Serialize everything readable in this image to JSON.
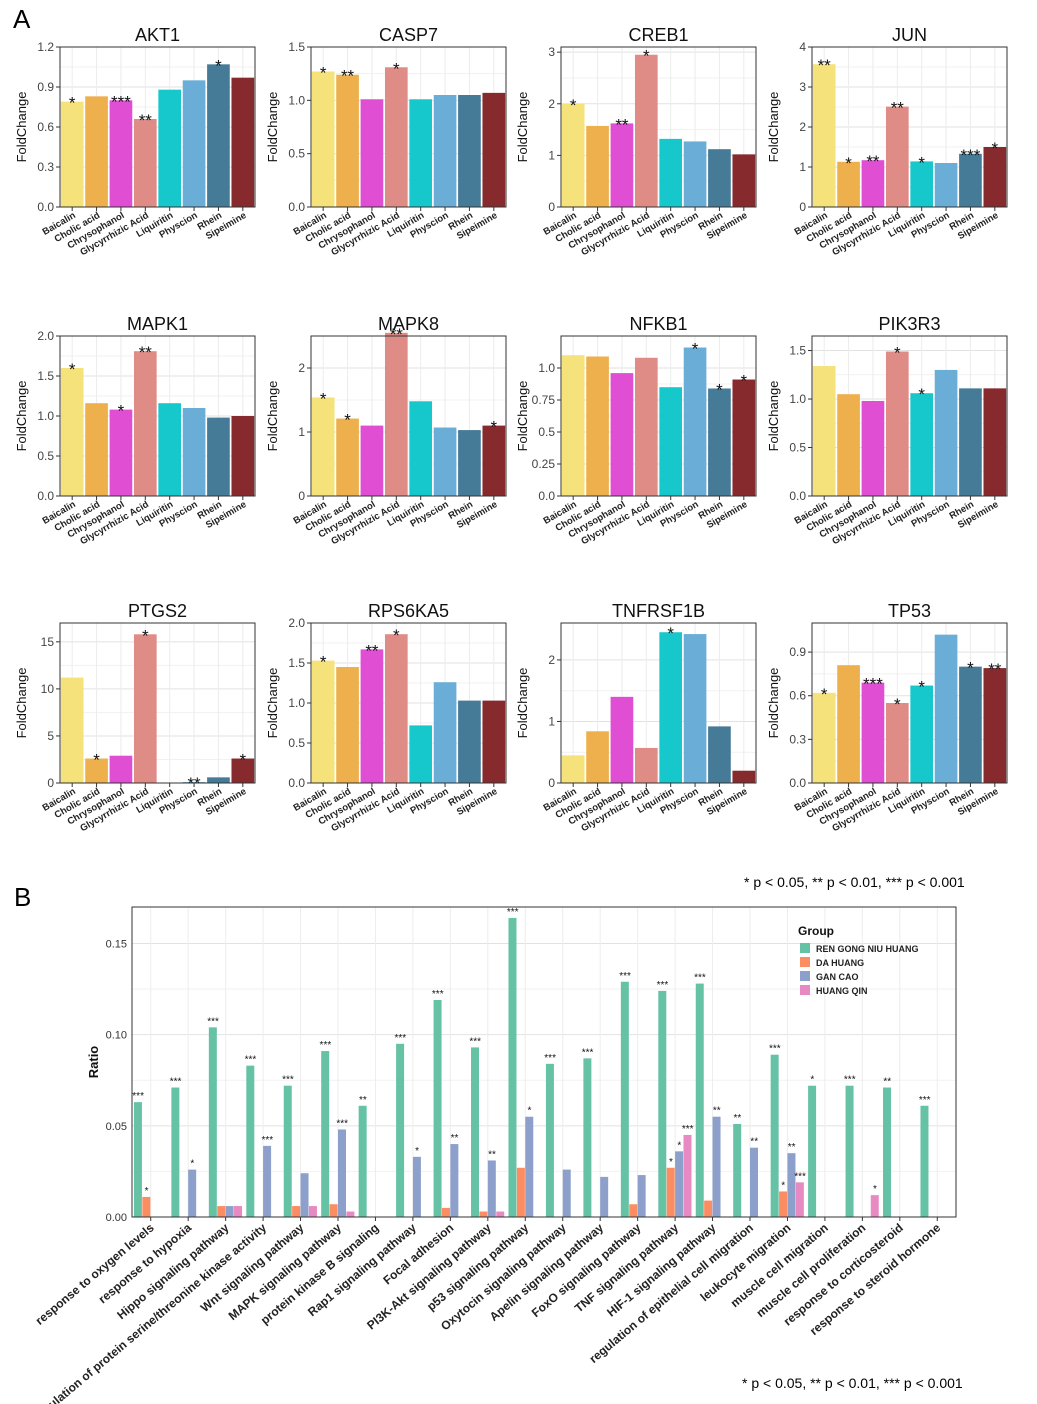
{
  "panels": {
    "a_label": "A",
    "b_label": "B"
  },
  "footnotes": {
    "a": "* p < 0.05, ** p < 0.01, *** p < 0.001",
    "b": "* p < 0.05, ** p < 0.01, *** p < 0.001"
  },
  "colors": {
    "compounds": [
      "#F5E27A",
      "#EDB04C",
      "#E04ED4",
      "#E08C86",
      "#16C8CC",
      "#6AAED8",
      "#457B97",
      "#862A2E"
    ],
    "groups": [
      "#66C2A5",
      "#FC8D62",
      "#8DA0CB",
      "#E78AC3"
    ]
  },
  "chart_data": [
    {
      "type": "bar",
      "title": "AKT1",
      "ylabel": "FoldChange",
      "categories": [
        "Baicalin",
        "Cholic acid",
        "Chrysophanol",
        "Glycyrrhizic Acid",
        "Liquiritin",
        "Physcion",
        "Rhein",
        "Sipeimine"
      ],
      "values": [
        0.79,
        0.83,
        0.8,
        0.66,
        0.88,
        0.95,
        1.07,
        0.97
      ],
      "significance": [
        "*",
        "",
        "***",
        "**",
        "",
        "",
        "*",
        ""
      ],
      "ylim": [
        0,
        1.2
      ],
      "yticks": [
        0.0,
        0.3,
        0.6,
        0.9,
        1.2
      ],
      "ytick_labels": [
        "0.0",
        "0.3",
        "0.6",
        "0.9",
        "1.2"
      ]
    },
    {
      "type": "bar",
      "title": "CASP7",
      "ylabel": "FoldChange",
      "categories": [
        "Baicalin",
        "Cholic acid",
        "Chrysophanol",
        "Glycyrrhizic Acid",
        "Liquiritin",
        "Physcion",
        "Rhein",
        "Sipeimine"
      ],
      "values": [
        1.27,
        1.24,
        1.01,
        1.31,
        1.01,
        1.05,
        1.05,
        1.07
      ],
      "significance": [
        "*",
        "**",
        "",
        "*",
        "",
        "",
        "",
        ""
      ],
      "ylim": [
        0,
        1.5
      ],
      "yticks": [
        0.0,
        0.5,
        1.0,
        1.5
      ],
      "ytick_labels": [
        "0.0",
        "0.5",
        "1.0",
        "1.5"
      ]
    },
    {
      "type": "bar",
      "title": "CREB1",
      "ylabel": "FoldChange",
      "categories": [
        "Baicalin",
        "Cholic acid",
        "Chrysophanol",
        "Glycyrrhizic Acid",
        "Liquiritin",
        "Physcion",
        "Rhein",
        "Sipeimine"
      ],
      "values": [
        2.0,
        1.57,
        1.62,
        2.95,
        1.32,
        1.27,
        1.12,
        1.02
      ],
      "significance": [
        "*",
        "",
        "**",
        "*",
        "",
        "",
        "",
        ""
      ],
      "ylim": [
        0,
        3.1
      ],
      "yticks": [
        0,
        1,
        2,
        3
      ],
      "ytick_labels": [
        "0",
        "1",
        "2",
        "3"
      ]
    },
    {
      "type": "bar",
      "title": "JUN",
      "ylabel": "FoldChange",
      "categories": [
        "Baicalin",
        "Cholic acid",
        "Chrysophanol",
        "Glycyrrhizic Acid",
        "Liquiritin",
        "Physcion",
        "Rhein",
        "Sipeimine"
      ],
      "values": [
        3.57,
        1.13,
        1.17,
        2.51,
        1.14,
        1.1,
        1.33,
        1.5
      ],
      "significance": [
        "**",
        "*",
        "**",
        "**",
        "*",
        "",
        "***",
        "*"
      ],
      "ylim": [
        0,
        4.0
      ],
      "yticks": [
        0,
        1,
        2,
        3,
        4
      ],
      "ytick_labels": [
        "0",
        "1",
        "2",
        "3",
        "4"
      ]
    },
    {
      "type": "bar",
      "title": "MAPK1",
      "ylabel": "FoldChange",
      "categories": [
        "Baicalin",
        "Cholic acid",
        "Chrysophanol",
        "Glycyrrhizic Acid",
        "Liquiritin",
        "Physcion",
        "Rhein",
        "Sipeimine"
      ],
      "values": [
        1.6,
        1.16,
        1.08,
        1.81,
        1.16,
        1.1,
        0.98,
        1.0
      ],
      "significance": [
        "*",
        "",
        "*",
        "**",
        "",
        "",
        "",
        ""
      ],
      "ylim": [
        0,
        2.0
      ],
      "yticks": [
        0.0,
        0.5,
        1.0,
        1.5,
        2.0
      ],
      "ytick_labels": [
        "0.0",
        "0.5",
        "1.0",
        "1.5",
        "2.0"
      ]
    },
    {
      "type": "bar",
      "title": "MAPK8",
      "ylabel": "FoldChange",
      "categories": [
        "Baicalin",
        "Cholic acid",
        "Chrysophanol",
        "Glycyrrhizic Acid",
        "Liquiritin",
        "Physcion",
        "Rhein",
        "Sipeimine"
      ],
      "values": [
        1.54,
        1.21,
        1.1,
        2.55,
        1.48,
        1.07,
        1.03,
        1.1
      ],
      "significance": [
        "*",
        "*",
        "",
        "**",
        "",
        "",
        "",
        "*"
      ],
      "ylim": [
        0,
        2.5
      ],
      "yticks": [
        0,
        1,
        2
      ],
      "ytick_labels": [
        "0",
        "1",
        "2"
      ]
    },
    {
      "type": "bar",
      "title": "NFKB1",
      "ylabel": "FoldChange",
      "categories": [
        "Baicalin",
        "Cholic acid",
        "Chrysophanol",
        "Glycyrrhizic Acid",
        "Liquiritin",
        "Physcion",
        "Rhein",
        "Sipeimine"
      ],
      "values": [
        1.1,
        1.09,
        0.96,
        1.08,
        0.85,
        1.16,
        0.84,
        0.91
      ],
      "significance": [
        "",
        "",
        "",
        "",
        "",
        "*",
        "*",
        "*"
      ],
      "ylim": [
        0,
        1.25
      ],
      "yticks": [
        0.0,
        0.25,
        0.5,
        0.75,
        1.0
      ],
      "ytick_labels": [
        "0.0",
        "0.25",
        "0.5",
        "0.75",
        "1.0"
      ]
    },
    {
      "type": "bar",
      "title": "PIK3R3",
      "ylabel": "FoldChange",
      "categories": [
        "Baicalin",
        "Cholic acid",
        "Chrysophanol",
        "Glycyrrhizic Acid",
        "Liquiritin",
        "Physcion",
        "Rhein",
        "Sipeimine"
      ],
      "values": [
        1.34,
        1.05,
        0.98,
        1.49,
        1.06,
        1.3,
        1.11,
        1.11
      ],
      "significance": [
        "",
        "",
        "",
        "*",
        "*",
        "",
        "",
        ""
      ],
      "ylim": [
        0,
        1.65
      ],
      "yticks": [
        0.0,
        0.5,
        1.0,
        1.5
      ],
      "ytick_labels": [
        "0.0",
        "0.5",
        "1.0",
        "1.5"
      ]
    },
    {
      "type": "bar",
      "title": "PTGS2",
      "ylabel": "FoldChange",
      "categories": [
        "Baicalin",
        "Cholic acid",
        "Chrysophanol",
        "Glycyrrhizic Acid",
        "Liquiritin",
        "Physcion",
        "Rhein",
        "Sipeimine"
      ],
      "values": [
        11.2,
        2.6,
        2.9,
        15.8,
        0,
        0.1,
        0.6,
        2.6
      ],
      "significance": [
        "",
        "*",
        "",
        "*",
        "",
        "**",
        "",
        "*"
      ],
      "ylim": [
        0,
        17
      ],
      "yticks": [
        0,
        5,
        10,
        15
      ],
      "ytick_labels": [
        "0",
        "5",
        "10",
        "15"
      ]
    },
    {
      "type": "bar",
      "title": "RPS6KA5",
      "ylabel": "FoldChange",
      "categories": [
        "Baicalin",
        "Cholic acid",
        "Chrysophanol",
        "Glycyrrhizic Acid",
        "Liquiritin",
        "Physcion",
        "Rhein",
        "Sipeimine"
      ],
      "values": [
        1.53,
        1.45,
        1.67,
        1.86,
        0.72,
        1.26,
        1.03,
        1.03
      ],
      "significance": [
        "*",
        "",
        "**",
        "*",
        "",
        "",
        "",
        ""
      ],
      "ylim": [
        0,
        2.0
      ],
      "yticks": [
        0.0,
        0.5,
        1.0,
        1.5,
        2.0
      ],
      "ytick_labels": [
        "0.0",
        "0.5",
        "1.0",
        "1.5",
        "2.0"
      ]
    },
    {
      "type": "bar",
      "title": "TNFRSF1B",
      "ylabel": "FoldChange",
      "categories": [
        "Baicalin",
        "Cholic acid",
        "Chrysophanol",
        "Glycyrrhizic Acid",
        "Liquiritin",
        "Physcion",
        "Rhein",
        "Sipeimine"
      ],
      "values": [
        0.45,
        0.84,
        1.4,
        0.57,
        2.45,
        2.42,
        0.92,
        0.2
      ],
      "significance": [
        "",
        "",
        "",
        "",
        "*",
        "",
        "",
        ""
      ],
      "ylim": [
        0,
        2.6
      ],
      "yticks": [
        0,
        1,
        2
      ],
      "ytick_labels": [
        "0",
        "1",
        "2"
      ]
    },
    {
      "type": "bar",
      "title": "TP53",
      "ylabel": "FoldChange",
      "categories": [
        "Baicalin",
        "Cholic acid",
        "Chrysophanol",
        "Glycyrrhizic Acid",
        "Liquiritin",
        "Physcion",
        "Rhein",
        "Sipeimine"
      ],
      "values": [
        0.62,
        0.81,
        0.69,
        0.55,
        0.67,
        1.02,
        0.8,
        0.79
      ],
      "significance": [
        "*",
        "",
        "***",
        "*",
        "*",
        "",
        "*",
        "**"
      ],
      "ylim": [
        0,
        1.1
      ],
      "yticks": [
        0.0,
        0.3,
        0.6,
        0.9
      ],
      "ytick_labels": [
        "0.0",
        "0.3",
        "0.6",
        "0.9"
      ]
    },
    {
      "type": "bar",
      "ylabel": "Ratio",
      "ylim": [
        0,
        0.17
      ],
      "yticks": [
        0.0,
        0.05,
        0.1,
        0.15
      ],
      "ytick_labels": [
        "0.00",
        "0.05",
        "0.10",
        "0.15"
      ],
      "legend": {
        "title": "Group",
        "position": "top-right"
      },
      "categories": [
        "response to oxygen levels",
        "response to hypoxia",
        "Hippo signaling pathway",
        "regulation of protein serine/threonine kinase activity",
        "Wnt signaling pathway",
        "MAPK signaling pathway",
        "protein kinase B signaling",
        "Rap1 signaling pathway",
        "Focal adhesion",
        "PI3K-Akt signaling pathway",
        "p53 signaling pathway",
        "Oxytocin signaling pathway",
        "Apelin signaling pathway",
        "FoxO signaling pathway",
        "TNF signaling pathway",
        "HIF-1 signaling pathway",
        "regulation of epithelial cell migration",
        "leukocyte migration",
        "muscle cell migration",
        "muscle cell proliferation",
        "response to corticosteroid",
        "response to steroid hormone"
      ],
      "series": [
        {
          "name": "REN GONG NIU HUANG",
          "values": [
            0.063,
            0.071,
            0.104,
            0.083,
            0.072,
            0.091,
            0.061,
            0.095,
            0.119,
            0.093,
            0.164,
            0.084,
            0.087,
            0.129,
            0.124,
            0.128,
            0.051,
            0.089,
            0.072,
            0.072,
            0.071,
            0.061
          ],
          "significance": [
            "***",
            "***",
            "***",
            "***",
            "***",
            "***",
            "**",
            "***",
            "***",
            "***",
            "***",
            "***",
            "***",
            "***",
            "***",
            "***",
            "**",
            "***",
            "*",
            "***",
            "**",
            "***"
          ]
        },
        {
          "name": "DA HUANG",
          "values": [
            0.011,
            0,
            0.006,
            0,
            0.006,
            0.007,
            0,
            0,
            0.005,
            0.003,
            0.027,
            0,
            0,
            0.007,
            0.027,
            0.009,
            0,
            0.014,
            0,
            0,
            0,
            0
          ],
          "significance": [
            "*",
            "",
            "",
            "",
            "",
            "",
            "",
            "",
            "",
            "",
            "",
            "",
            "",
            "",
            "*",
            "",
            "",
            "*",
            "",
            "",
            "",
            ""
          ]
        },
        {
          "name": "GAN CAO",
          "values": [
            0,
            0.026,
            0.006,
            0.039,
            0.024,
            0.048,
            0,
            0.033,
            0.04,
            0.031,
            0.055,
            0.026,
            0.022,
            0.023,
            0.036,
            0.055,
            0.038,
            0.035,
            0,
            0,
            0,
            0
          ],
          "significance": [
            "",
            "*",
            "",
            "***",
            "",
            "***",
            "",
            "*",
            "**",
            "**",
            "*",
            "",
            "",
            "",
            "*",
            "**",
            "**",
            "**",
            "",
            "",
            "",
            ""
          ]
        },
        {
          "name": "HUANG QIN",
          "values": [
            0,
            0,
            0.006,
            0,
            0.006,
            0.003,
            0,
            0,
            0,
            0.003,
            0,
            0,
            0,
            0,
            0.045,
            0,
            0,
            0.019,
            0,
            0.012,
            0,
            0
          ],
          "significance": [
            "",
            "",
            "",
            "",
            "",
            "",
            "",
            "",
            "",
            "",
            "",
            "",
            "",
            "",
            "***",
            "",
            "",
            "***",
            "",
            "*",
            "",
            ""
          ]
        }
      ]
    }
  ]
}
